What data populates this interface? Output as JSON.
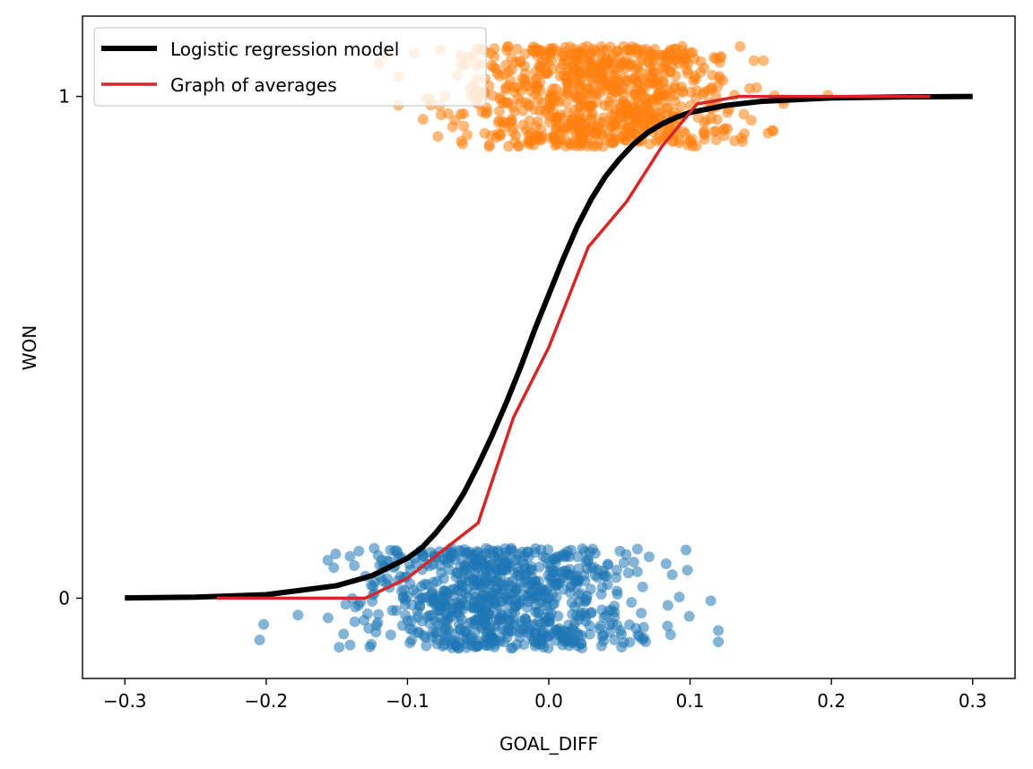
{
  "chart_data": {
    "type": "scatter",
    "xlabel": "GOAL_DIFF",
    "ylabel": "WON",
    "xlim": [
      -0.33,
      0.33
    ],
    "ylim": [
      -0.16,
      1.16
    ],
    "xticks": [
      -0.3,
      -0.2,
      -0.1,
      0.0,
      0.1,
      0.2,
      0.3
    ],
    "xtick_labels": [
      "−0.3",
      "−0.2",
      "−0.1",
      "0.0",
      "0.1",
      "0.2",
      "0.3"
    ],
    "yticks": [
      0,
      1
    ],
    "ytick_labels": [
      "0",
      "1"
    ],
    "legend_position": "top-left",
    "colors": {
      "won": "#ff7f0e",
      "lost": "#1f77b4",
      "logistic": "#000000",
      "averages": "#d62728"
    },
    "series": [
      {
        "name": "Logistic regression model",
        "kind": "line",
        "x": [
          -0.3,
          -0.25,
          -0.2,
          -0.15,
          -0.125,
          -0.1,
          -0.09,
          -0.08,
          -0.07,
          -0.06,
          -0.05,
          -0.04,
          -0.03,
          -0.02,
          -0.01,
          0.0,
          0.01,
          0.02,
          0.03,
          0.04,
          0.05,
          0.06,
          0.07,
          0.08,
          0.09,
          0.1,
          0.125,
          0.15,
          0.2,
          0.25,
          0.3
        ],
        "y": [
          0.0005,
          0.002,
          0.007,
          0.025,
          0.045,
          0.08,
          0.1,
          0.13,
          0.165,
          0.21,
          0.265,
          0.325,
          0.39,
          0.46,
          0.535,
          0.605,
          0.675,
          0.74,
          0.795,
          0.84,
          0.875,
          0.905,
          0.928,
          0.945,
          0.958,
          0.968,
          0.982,
          0.99,
          0.997,
          0.999,
          1.0
        ]
      },
      {
        "name": "Graph of averages",
        "kind": "line",
        "x": [
          -0.235,
          -0.13,
          -0.1,
          -0.05,
          -0.025,
          0.0,
          0.028,
          0.055,
          0.08,
          0.105,
          0.135,
          0.2,
          0.27
        ],
        "y": [
          0.0,
          0.0,
          0.04,
          0.15,
          0.36,
          0.5,
          0.7,
          0.79,
          0.9,
          0.985,
          1.0,
          1.0,
          1.0
        ]
      }
    ],
    "scatter": {
      "won_count": 800,
      "won_center": 0.035,
      "won_spread": 0.05,
      "won_jitter": 0.1,
      "lost_count": 800,
      "lost_center": -0.035,
      "lost_spread": 0.05,
      "lost_jitter": 0.1,
      "alpha": 0.55
    }
  }
}
